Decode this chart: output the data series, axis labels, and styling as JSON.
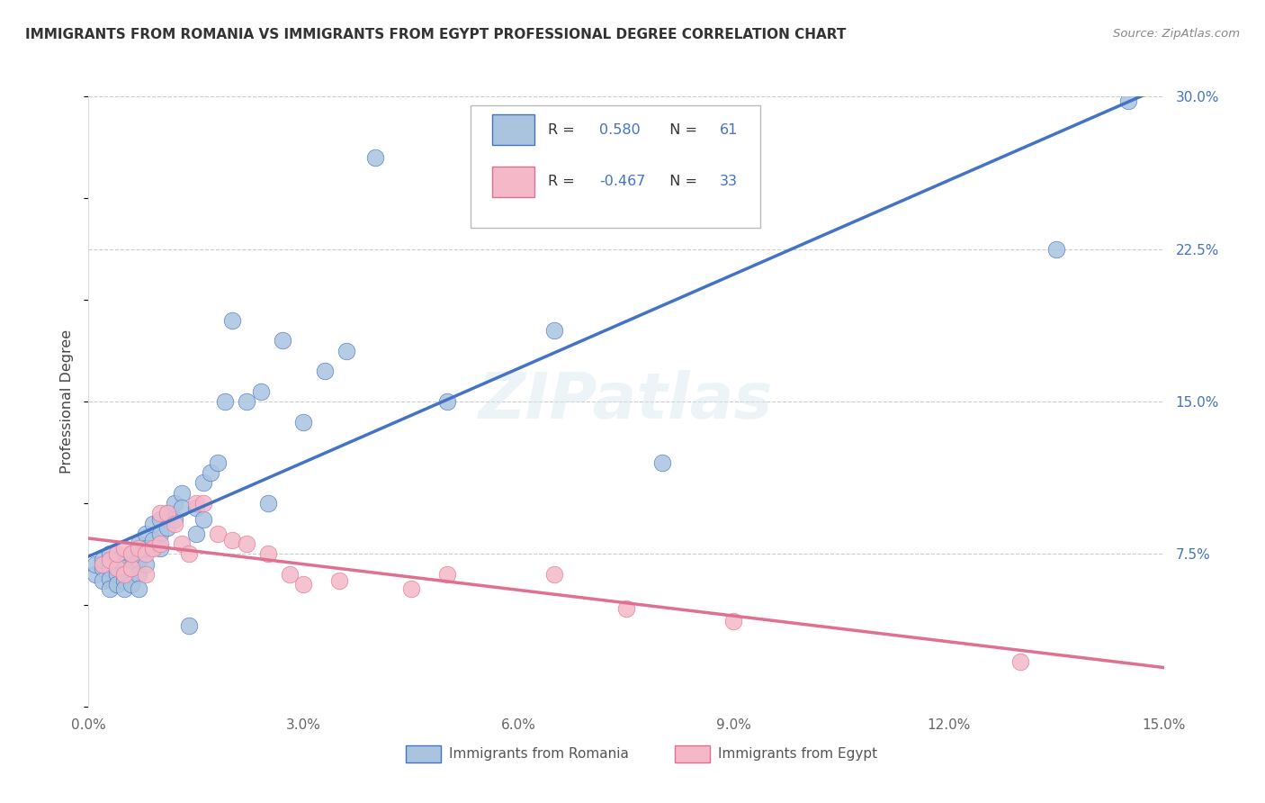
{
  "title": "IMMIGRANTS FROM ROMANIA VS IMMIGRANTS FROM EGYPT PROFESSIONAL DEGREE CORRELATION CHART",
  "source": "Source: ZipAtlas.com",
  "ylabel": "Professional Degree",
  "xlim": [
    0.0,
    0.15
  ],
  "ylim": [
    0.0,
    0.3
  ],
  "r_romania": 0.58,
  "n_romania": 61,
  "r_egypt": -0.467,
  "n_egypt": 33,
  "romania_color": "#aac4e0",
  "egypt_color": "#f4b8c8",
  "romania_line_color": "#4472c4",
  "egypt_line_color": "#e07090",
  "background_color": "#ffffff",
  "grid_color": "#cccccc",
  "romania_scatter_x": [
    0.001,
    0.001,
    0.002,
    0.002,
    0.002,
    0.003,
    0.003,
    0.003,
    0.003,
    0.004,
    0.004,
    0.004,
    0.004,
    0.005,
    0.005,
    0.005,
    0.005,
    0.005,
    0.006,
    0.006,
    0.006,
    0.007,
    0.007,
    0.007,
    0.007,
    0.008,
    0.008,
    0.008,
    0.009,
    0.009,
    0.01,
    0.01,
    0.01,
    0.011,
    0.011,
    0.012,
    0.012,
    0.013,
    0.013,
    0.014,
    0.015,
    0.015,
    0.016,
    0.016,
    0.017,
    0.018,
    0.019,
    0.02,
    0.022,
    0.024,
    0.025,
    0.027,
    0.03,
    0.033,
    0.036,
    0.04,
    0.05,
    0.065,
    0.08,
    0.135,
    0.145
  ],
  "romania_scatter_y": [
    0.065,
    0.07,
    0.068,
    0.062,
    0.072,
    0.068,
    0.063,
    0.058,
    0.075,
    0.07,
    0.065,
    0.06,
    0.072,
    0.07,
    0.065,
    0.068,
    0.062,
    0.058,
    0.075,
    0.068,
    0.06,
    0.08,
    0.072,
    0.065,
    0.058,
    0.085,
    0.078,
    0.07,
    0.09,
    0.082,
    0.092,
    0.085,
    0.078,
    0.095,
    0.088,
    0.1,
    0.092,
    0.105,
    0.098,
    0.04,
    0.098,
    0.085,
    0.11,
    0.092,
    0.115,
    0.12,
    0.15,
    0.19,
    0.15,
    0.155,
    0.1,
    0.18,
    0.14,
    0.165,
    0.175,
    0.27,
    0.15,
    0.185,
    0.12,
    0.225,
    0.298
  ],
  "egypt_scatter_x": [
    0.002,
    0.003,
    0.004,
    0.004,
    0.005,
    0.005,
    0.006,
    0.006,
    0.007,
    0.008,
    0.008,
    0.009,
    0.01,
    0.01,
    0.011,
    0.012,
    0.013,
    0.014,
    0.015,
    0.016,
    0.018,
    0.02,
    0.022,
    0.025,
    0.028,
    0.03,
    0.035,
    0.045,
    0.05,
    0.065,
    0.075,
    0.09,
    0.13
  ],
  "egypt_scatter_y": [
    0.07,
    0.072,
    0.068,
    0.075,
    0.065,
    0.078,
    0.068,
    0.075,
    0.078,
    0.065,
    0.075,
    0.078,
    0.08,
    0.095,
    0.095,
    0.09,
    0.08,
    0.075,
    0.1,
    0.1,
    0.085,
    0.082,
    0.08,
    0.075,
    0.065,
    0.06,
    0.062,
    0.058,
    0.065,
    0.065,
    0.048,
    0.042,
    0.022
  ]
}
